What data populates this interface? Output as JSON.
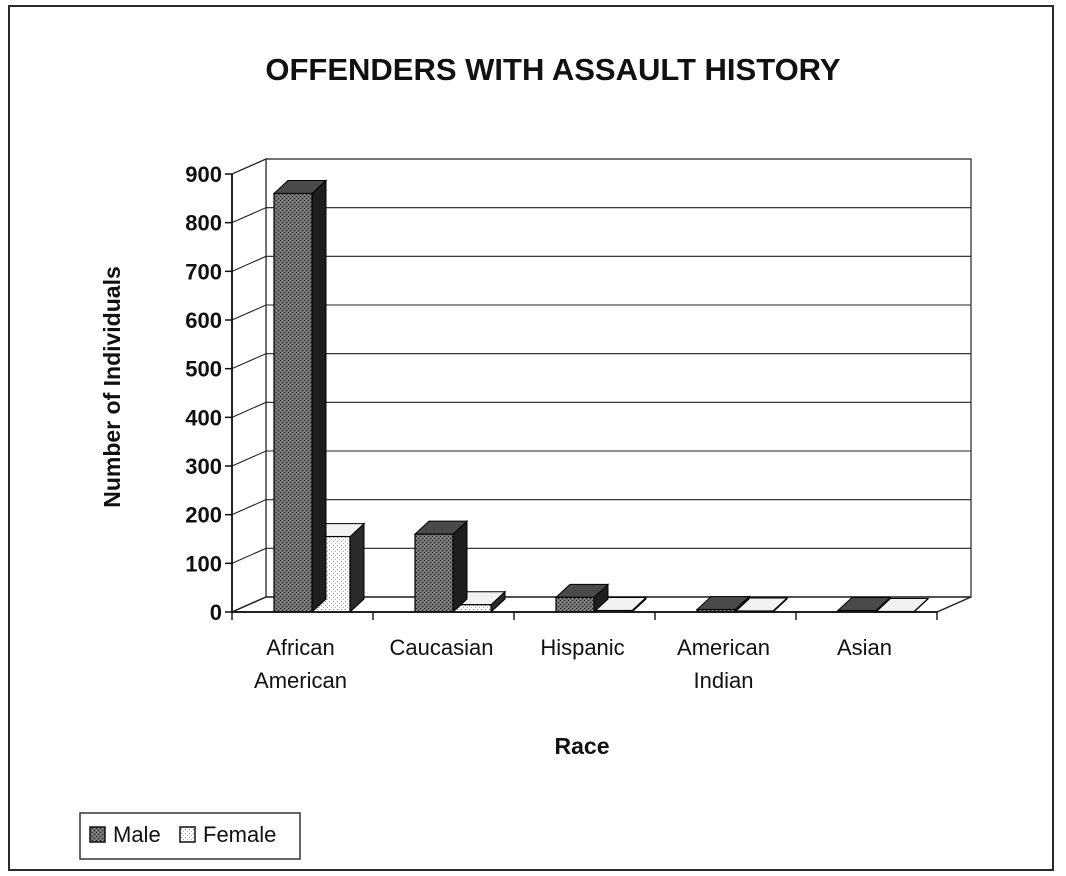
{
  "chart_data": {
    "type": "bar",
    "title": "OFFENDERS WITH ASSAULT HISTORY",
    "xlabel": "Race",
    "ylabel": "Number of Individuals",
    "categories": [
      [
        "African",
        "American"
      ],
      [
        "Caucasian"
      ],
      [
        "Hispanic"
      ],
      [
        "American",
        "Indian"
      ],
      [
        "Asian"
      ]
    ],
    "series": [
      {
        "name": "Male",
        "values": [
          860,
          160,
          30,
          5,
          3
        ],
        "color": "#5a5a5a"
      },
      {
        "name": "Female",
        "values": [
          155,
          15,
          3,
          2,
          1
        ],
        "color": "#ffffff"
      }
    ],
    "ylim": [
      0,
      900
    ],
    "yticks": [
      0,
      100,
      200,
      300,
      400,
      500,
      600,
      700,
      800,
      900
    ],
    "grid": true,
    "style": "3d-clustered-column",
    "legend_position": "bottom-left"
  }
}
